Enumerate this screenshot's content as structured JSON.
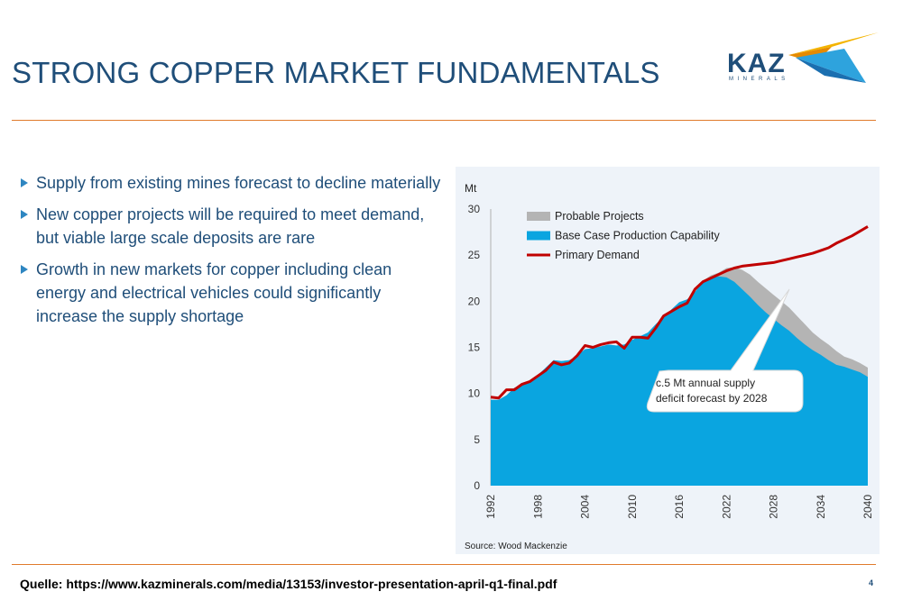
{
  "slide": {
    "title": "STRONG COPPER MARKET FUNDAMENTALS",
    "page_number": "4",
    "source_link": "Quelle: https://www.kazminerals.com/media/13153/investor-presentation-april-q1-final.pdf"
  },
  "logo": {
    "text": "KAZ",
    "subtext": "MINERALS"
  },
  "bullets": [
    "Supply from existing mines forecast to decline materially",
    "New copper projects will be required to meet demand, but viable large scale deposits are rare",
    "Growth in new markets for copper including clean energy and electrical vehicles could significantly increase the supply shortage"
  ],
  "colors": {
    "title": "#1f4e79",
    "accent_rule": "#e07b2c",
    "base_case": "#0aa5e0",
    "probable": "#b4b4b4",
    "demand": "#c00000",
    "panel_bg": "#eef3f9"
  },
  "chart_data": {
    "type": "area",
    "unit_label": "Mt",
    "ylim": [
      0,
      30
    ],
    "yticks": [
      0,
      5,
      10,
      15,
      20,
      25,
      30
    ],
    "xlim": [
      1992,
      2040
    ],
    "xticks": [
      "1992",
      "1998",
      "2004",
      "2010",
      "2016",
      "2022",
      "2028",
      "2034",
      "2040"
    ],
    "legend_position": "top-left",
    "source": "Source: Wood Mackenzie",
    "annotation": {
      "lines": [
        "c.5 Mt annual supply",
        "deficit forecast by 2028"
      ]
    },
    "x": [
      1992,
      1993,
      1994,
      1995,
      1996,
      1997,
      1998,
      1999,
      2000,
      2001,
      2002,
      2003,
      2004,
      2005,
      2006,
      2007,
      2008,
      2009,
      2010,
      2011,
      2012,
      2013,
      2014,
      2015,
      2016,
      2017,
      2018,
      2019,
      2020,
      2021,
      2022,
      2023,
      2024,
      2025,
      2026,
      2027,
      2028,
      2029,
      2030,
      2031,
      2032,
      2033,
      2034,
      2035,
      2036,
      2037,
      2038,
      2039,
      2040
    ],
    "series": [
      {
        "name": "Probable Projects",
        "kind": "area",
        "values": [
          9.3,
          9.3,
          9.8,
          10.6,
          11.0,
          11.3,
          12.0,
          12.8,
          13.6,
          13.5,
          13.6,
          14.1,
          14.8,
          14.9,
          15.1,
          15.3,
          15.2,
          15.3,
          15.8,
          16.2,
          16.6,
          17.5,
          18.3,
          19.1,
          19.9,
          20.2,
          21.0,
          22.2,
          22.8,
          23.1,
          23.6,
          23.7,
          23.4,
          22.9,
          22.1,
          21.4,
          20.7,
          20.0,
          19.3,
          18.4,
          17.5,
          16.6,
          15.9,
          15.3,
          14.6,
          14.0,
          13.7,
          13.3,
          12.8
        ]
      },
      {
        "name": "Base Case Production Capability",
        "kind": "area",
        "values": [
          9.3,
          9.3,
          9.8,
          10.6,
          11.0,
          11.3,
          12.0,
          12.8,
          13.6,
          13.5,
          13.6,
          14.1,
          14.8,
          14.9,
          15.1,
          15.3,
          15.2,
          15.3,
          15.8,
          16.2,
          16.6,
          17.5,
          18.3,
          19.1,
          19.9,
          20.2,
          21.0,
          22.1,
          22.5,
          22.7,
          22.6,
          22.1,
          21.3,
          20.5,
          19.6,
          18.8,
          18.1,
          17.4,
          16.8,
          16.0,
          15.3,
          14.7,
          14.2,
          13.6,
          13.1,
          12.9,
          12.6,
          12.3,
          11.8
        ]
      },
      {
        "name": "Primary Demand",
        "kind": "line",
        "values": [
          9.6,
          9.5,
          10.4,
          10.4,
          11.0,
          11.3,
          11.9,
          12.5,
          13.4,
          13.1,
          13.3,
          14.1,
          15.2,
          15.0,
          15.3,
          15.5,
          15.6,
          14.9,
          16.1,
          16.1,
          16.0,
          17.1,
          18.4,
          18.9,
          19.4,
          19.8,
          21.3,
          22.1,
          22.5,
          22.9,
          23.3,
          23.6,
          23.8,
          23.9,
          24.0,
          24.1,
          24.2,
          24.4,
          24.6,
          24.8,
          25.0,
          25.2,
          25.5,
          25.8,
          26.3,
          26.7,
          27.1,
          27.6,
          28.1
        ]
      }
    ]
  }
}
